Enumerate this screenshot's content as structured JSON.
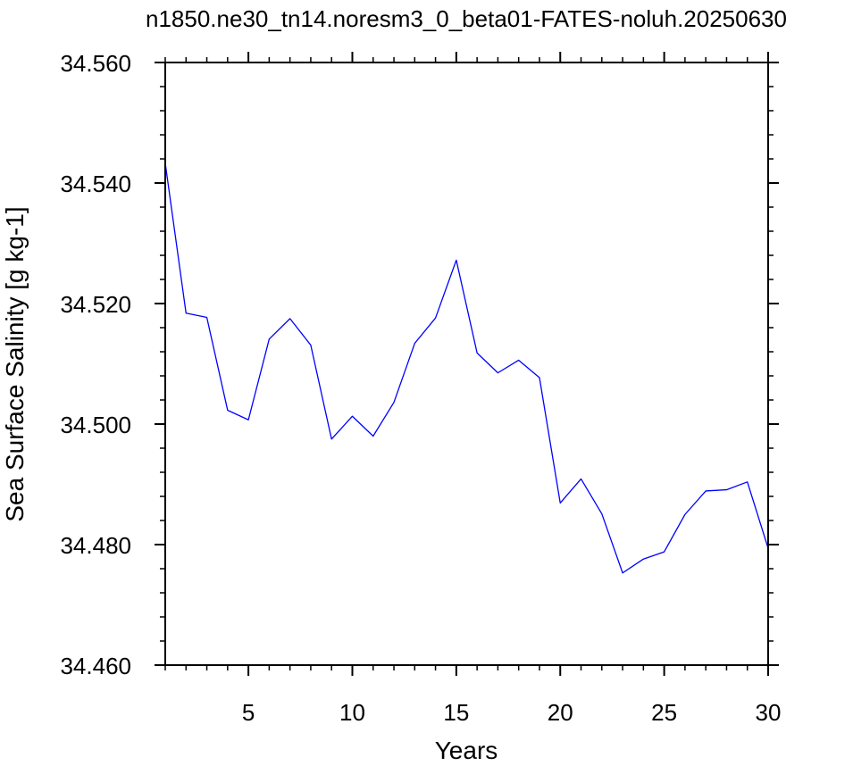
{
  "chart_data": {
    "type": "line",
    "title": "n1850.ne30_tn14.noresm3_0_beta01-FATES-noluh.20250630",
    "xlabel": "Years",
    "ylabel": "Sea Surface Salinity [g kg-1]",
    "xlim": [
      1,
      30
    ],
    "ylim": [
      34.46,
      34.56
    ],
    "x_ticks": [
      5,
      10,
      15,
      20,
      25,
      30
    ],
    "x_tick_labels": [
      "5",
      "10",
      "15",
      "20",
      "25",
      "30"
    ],
    "y_ticks": [
      34.46,
      34.48,
      34.5,
      34.52,
      34.54,
      34.56
    ],
    "y_tick_labels": [
      "34.460",
      "34.480",
      "34.500",
      "34.520",
      "34.540",
      "34.560"
    ],
    "grid": false,
    "series": [
      {
        "color": "#0000ff",
        "x": [
          1,
          2,
          3,
          4,
          5,
          6,
          7,
          8,
          9,
          10,
          11,
          12,
          13,
          14,
          15,
          16,
          17,
          18,
          19,
          20,
          21,
          22,
          23,
          24,
          25,
          26,
          27,
          28,
          29,
          30
        ],
        "values": [
          34.5433,
          34.5184,
          34.5177,
          34.5023,
          34.5007,
          34.5141,
          34.5175,
          34.5131,
          34.4975,
          34.5013,
          34.498,
          34.5036,
          34.5134,
          34.5176,
          34.5272,
          34.5118,
          34.5085,
          34.5106,
          34.5077,
          34.4869,
          34.4909,
          34.4851,
          34.4753,
          34.4776,
          34.4788,
          34.485,
          34.4889,
          34.4891,
          34.4904,
          34.4794
        ]
      }
    ]
  }
}
